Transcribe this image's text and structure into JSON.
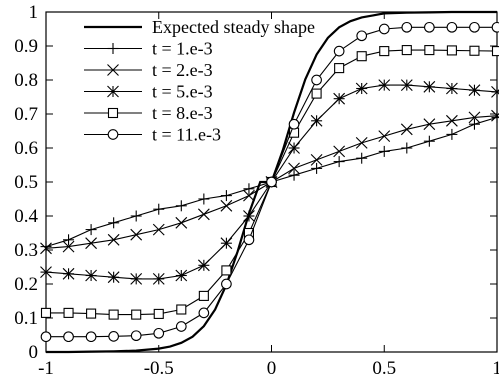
{
  "chart_data": {
    "type": "line",
    "title": "",
    "xlabel": "",
    "ylabel": "",
    "xlim": [
      -1,
      1
    ],
    "ylim": [
      0,
      1
    ],
    "grid": false,
    "legend_position": "top-left",
    "x_ticks": [
      "-1",
      "-0.5",
      "0",
      "0.5",
      "1"
    ],
    "y_ticks": [
      "0",
      "0.1",
      "0.2",
      "0.3",
      "0.4",
      "0.5",
      "0.6",
      "0.7",
      "0.8",
      "0.9",
      "1"
    ],
    "series": [
      {
        "name": "Expected steady shape",
        "marker": "none",
        "x": [
          -1,
          -0.9,
          -0.8,
          -0.7,
          -0.6,
          -0.5,
          -0.45,
          -0.4,
          -0.35,
          -0.3,
          -0.25,
          -0.2,
          -0.15,
          -0.1,
          -0.05,
          0,
          0.05,
          0.1,
          0.15,
          0.2,
          0.25,
          0.3,
          0.35,
          0.4,
          0.45,
          0.5,
          0.6,
          0.7,
          0.8,
          0.9,
          1
        ],
        "values": [
          0.0,
          0.0,
          0.001,
          0.002,
          0.004,
          0.01,
          0.016,
          0.027,
          0.045,
          0.076,
          0.125,
          0.198,
          0.296,
          0.407,
          0.5,
          0.5,
          0.593,
          0.704,
          0.802,
          0.875,
          0.924,
          0.955,
          0.973,
          0.984,
          0.99,
          0.996,
          0.998,
          0.999,
          1.0,
          1.0,
          1.0
        ]
      },
      {
        "name": "t = 1.e-3",
        "marker": "plus",
        "x": [
          -1,
          -0.9,
          -0.8,
          -0.7,
          -0.6,
          -0.5,
          -0.4,
          -0.3,
          -0.2,
          -0.1,
          0,
          0.1,
          0.2,
          0.3,
          0.4,
          0.5,
          0.6,
          0.7,
          0.8,
          0.9,
          1
        ],
        "values": [
          0.31,
          0.33,
          0.36,
          0.38,
          0.4,
          0.42,
          0.43,
          0.45,
          0.46,
          0.48,
          0.5,
          0.52,
          0.54,
          0.56,
          0.57,
          0.59,
          0.6,
          0.62,
          0.64,
          0.67,
          0.69
        ]
      },
      {
        "name": "t = 2.e-3",
        "marker": "cross",
        "x": [
          -1,
          -0.9,
          -0.8,
          -0.7,
          -0.6,
          -0.5,
          -0.4,
          -0.3,
          -0.2,
          -0.1,
          0,
          0.1,
          0.2,
          0.3,
          0.4,
          0.5,
          0.6,
          0.7,
          0.8,
          0.9,
          1
        ],
        "values": [
          0.305,
          0.31,
          0.32,
          0.33,
          0.345,
          0.36,
          0.38,
          0.405,
          0.43,
          0.46,
          0.5,
          0.54,
          0.565,
          0.59,
          0.615,
          0.635,
          0.655,
          0.67,
          0.68,
          0.69,
          0.695
        ]
      },
      {
        "name": "t = 5.e-3",
        "marker": "star",
        "x": [
          -1,
          -0.9,
          -0.8,
          -0.7,
          -0.6,
          -0.5,
          -0.4,
          -0.3,
          -0.2,
          -0.1,
          0,
          0.1,
          0.2,
          0.3,
          0.4,
          0.5,
          0.6,
          0.7,
          0.8,
          0.9,
          1
        ],
        "values": [
          0.235,
          0.23,
          0.225,
          0.22,
          0.215,
          0.215,
          0.225,
          0.255,
          0.32,
          0.4,
          0.5,
          0.6,
          0.68,
          0.745,
          0.775,
          0.785,
          0.785,
          0.78,
          0.775,
          0.77,
          0.765
        ]
      },
      {
        "name": "t = 8.e-3",
        "marker": "square",
        "x": [
          -1,
          -0.9,
          -0.8,
          -0.7,
          -0.6,
          -0.5,
          -0.4,
          -0.3,
          -0.2,
          -0.1,
          0,
          0.1,
          0.2,
          0.3,
          0.4,
          0.5,
          0.6,
          0.7,
          0.8,
          0.9,
          1
        ],
        "values": [
          0.115,
          0.115,
          0.113,
          0.11,
          0.11,
          0.112,
          0.125,
          0.165,
          0.24,
          0.35,
          0.5,
          0.645,
          0.76,
          0.835,
          0.87,
          0.885,
          0.888,
          0.888,
          0.887,
          0.886,
          0.885
        ]
      },
      {
        "name": "t = 11.e-3",
        "marker": "circle",
        "x": [
          -1,
          -0.9,
          -0.8,
          -0.7,
          -0.6,
          -0.5,
          -0.4,
          -0.3,
          -0.2,
          -0.1,
          0,
          0.1,
          0.2,
          0.3,
          0.4,
          0.5,
          0.6,
          0.7,
          0.8,
          0.9,
          1
        ],
        "values": [
          0.045,
          0.045,
          0.045,
          0.046,
          0.048,
          0.055,
          0.075,
          0.115,
          0.2,
          0.33,
          0.5,
          0.67,
          0.8,
          0.885,
          0.93,
          0.95,
          0.955,
          0.955,
          0.955,
          0.955,
          0.955
        ]
      }
    ]
  }
}
